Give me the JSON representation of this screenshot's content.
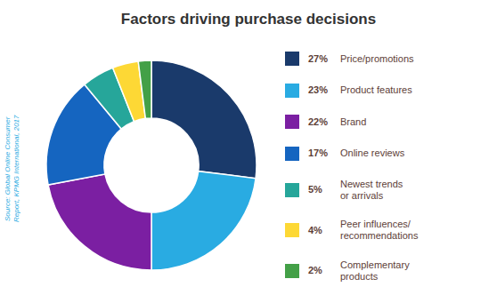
{
  "chart_data": {
    "type": "donut",
    "title": "Factors driving purchase decisions",
    "categories": [
      "Price/promotions",
      "Product features",
      "Brand",
      "Online reviews",
      "Newest trends\nor arrivals",
      "Peer influences/\nrecommendations",
      "Complementary\nproducts"
    ],
    "values": [
      27,
      23,
      22,
      17,
      5,
      4,
      2
    ],
    "value_labels": [
      "27%",
      "23%",
      "22%",
      "17%",
      "5%",
      "4%",
      "2%"
    ],
    "colors": [
      "#1a3a6b",
      "#29abe2",
      "#7b1fa2",
      "#1565c0",
      "#26a69a",
      "#fdd835",
      "#43a047"
    ],
    "annotations": [
      "Source: Global Online Consumer\nReport, KPMG International, 2017"
    ],
    "legend": "right"
  }
}
